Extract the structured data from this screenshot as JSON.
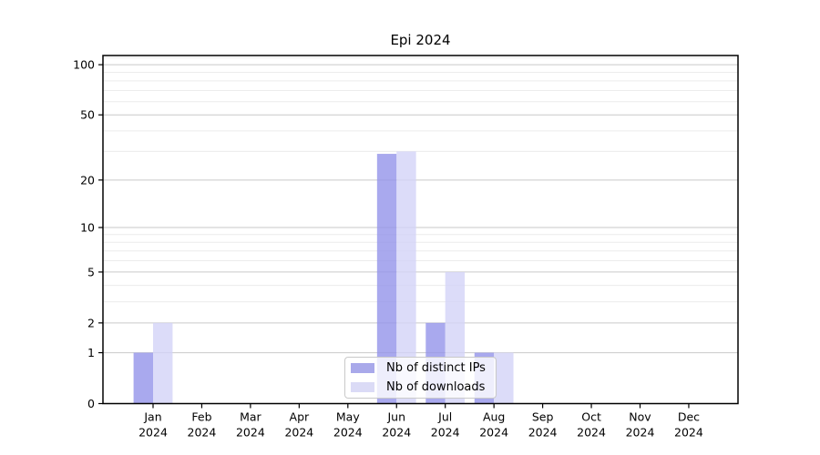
{
  "title": "Epi 2024",
  "legend": {
    "items": [
      {
        "label": "Nb of distinct IPs",
        "swatch_color": "#a9a9ea"
      },
      {
        "label": "Nb of downloads",
        "swatch_color": "#dbdbf6"
      }
    ]
  },
  "chart_data": {
    "type": "bar",
    "title": "Epi 2024",
    "categories": [
      "Jan 2024",
      "Feb 2024",
      "Mar 2024",
      "Apr 2024",
      "May 2024",
      "Jun 2024",
      "Jul 2024",
      "Aug 2024",
      "Sep 2024",
      "Oct 2024",
      "Nov 2024",
      "Dec 2024"
    ],
    "series": [
      {
        "name": "Nb of distinct IPs",
        "values": [
          1,
          0,
          0,
          0,
          0,
          29,
          2,
          1,
          0,
          0,
          0,
          0
        ],
        "fill": "rgba(148,148,234,0.8)",
        "swatch": "#a9a9ea"
      },
      {
        "name": "Nb of downloads",
        "values": [
          2,
          0,
          0,
          0,
          0,
          30,
          5,
          1,
          0,
          0,
          0,
          0
        ],
        "fill": "rgba(211,211,247,0.8)",
        "swatch": "#dbdbf6"
      }
    ],
    "xlabel": "",
    "ylabel": "",
    "yscale": "log10(1+y)",
    "ylim": [
      0,
      113
    ],
    "y_major_ticks": [
      0,
      1,
      2,
      5,
      10,
      20,
      50,
      100
    ],
    "y_minor_gridlines": [
      3,
      4,
      6,
      7,
      8,
      9,
      30,
      40,
      60,
      70,
      80,
      90,
      110
    ],
    "grid": true,
    "legend_position": "lower center",
    "colors": {
      "major_grid": "#c9c9c9",
      "minor_grid": "#ececec",
      "spine": "#000000",
      "tick_label": "#000000"
    }
  }
}
